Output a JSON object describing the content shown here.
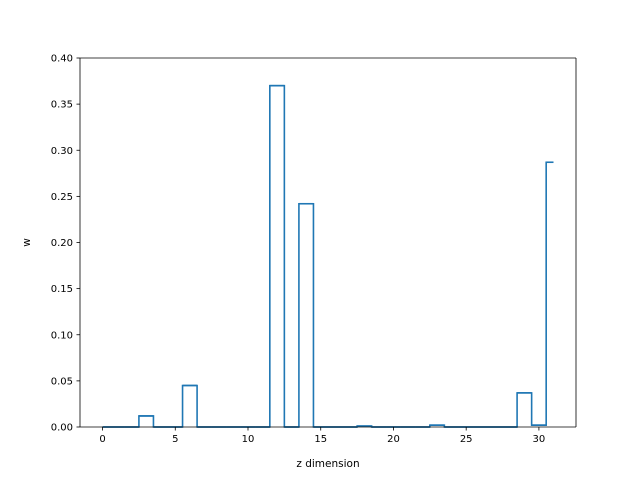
{
  "chart_data": {
    "type": "step",
    "title": "",
    "xlabel": "z dimension",
    "ylabel": "w",
    "xlim": [
      -1.55,
      32.55
    ],
    "ylim": [
      0.0,
      0.4
    ],
    "xticks": [
      0,
      5,
      10,
      15,
      20,
      25,
      30
    ],
    "yticks": [
      0.0,
      0.05,
      0.1,
      0.15,
      0.2,
      0.25,
      0.3,
      0.35,
      0.4
    ],
    "ytick_labels": [
      "0.00",
      "0.05",
      "0.10",
      "0.15",
      "0.20",
      "0.25",
      "0.30",
      "0.35",
      "0.40"
    ],
    "line_color": "#1f77b4",
    "grid": false,
    "x": [
      0,
      1,
      2,
      3,
      4,
      5,
      6,
      7,
      8,
      9,
      10,
      11,
      12,
      13,
      14,
      15,
      16,
      17,
      18,
      19,
      20,
      21,
      22,
      23,
      24,
      25,
      26,
      27,
      28,
      29,
      30,
      31
    ],
    "values": [
      0,
      0,
      0,
      0.012,
      0,
      0,
      0.045,
      0,
      0,
      0,
      0,
      0,
      0.37,
      0,
      0.242,
      0,
      0,
      0,
      0.001,
      0,
      0,
      0,
      0,
      0.002,
      0,
      0,
      0,
      0,
      0,
      0.037,
      0.002,
      0.287
    ]
  }
}
